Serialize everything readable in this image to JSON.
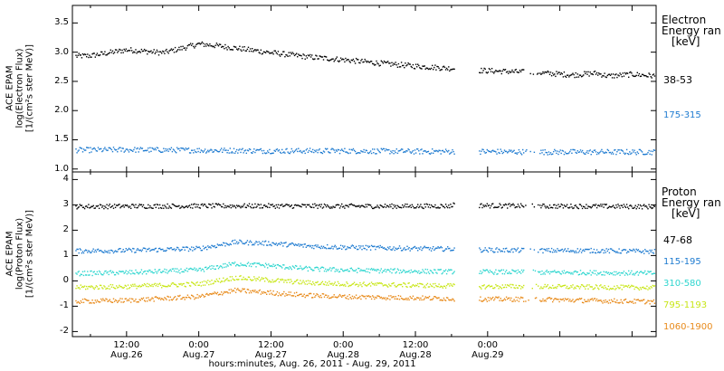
{
  "chart_data": [
    {
      "type": "scatter",
      "panel": "electron",
      "ylabel_lines": [
        "ACE EPAM",
        "log(Electron Flux)",
        "[1/(cm²s ster MeV)]"
      ],
      "ylim": [
        0.95,
        3.8
      ],
      "yticks": [
        "1.0",
        "1.5",
        "2.0",
        "2.5",
        "3.0",
        "3.5"
      ],
      "ytick_values": [
        1.0,
        1.5,
        2.0,
        2.5,
        3.0,
        3.5
      ],
      "legend_title_lines": [
        "Electron",
        "Energy ran",
        "[keV]"
      ],
      "series": [
        {
          "name": "38-53",
          "color": "#000000",
          "x": [
            0,
            6,
            12,
            18,
            24,
            27,
            30,
            36,
            42,
            48,
            54,
            60,
            66,
            70,
            80,
            86,
            90,
            92,
            96,
            100
          ],
          "y": [
            2.93,
            2.95,
            3.05,
            3.0,
            3.15,
            3.12,
            3.08,
            3.0,
            2.93,
            2.88,
            2.82,
            2.77,
            2.73,
            2.7,
            2.66,
            2.62,
            2.65,
            2.6,
            2.63,
            2.6
          ]
        },
        {
          "name": "175-315",
          "color": "#1e7bd0",
          "x": [
            0,
            12,
            24,
            36,
            48,
            60,
            70,
            80,
            88,
            100
          ],
          "y": [
            1.33,
            1.34,
            1.33,
            1.32,
            1.32,
            1.31,
            1.31,
            1.3,
            1.3,
            1.3
          ]
        }
      ]
    },
    {
      "type": "scatter",
      "panel": "proton",
      "ylabel_lines": [
        "ACE EPAM",
        "log(Proton Flux)",
        "[1/(cm²s ster MeV)]"
      ],
      "ylim": [
        -2.2,
        4.3
      ],
      "yticks": [
        "-2",
        "-1",
        "0",
        "1",
        "2",
        "3",
        "4"
      ],
      "ytick_values": [
        -2,
        -1,
        0,
        1,
        2,
        3,
        4
      ],
      "legend_title_lines": [
        "Proton",
        "Energy ran",
        "[keV]"
      ],
      "series": [
        {
          "name": "47-68",
          "color": "#000000",
          "x": [
            0,
            12,
            24,
            36,
            48,
            60,
            66,
            68,
            70,
            80,
            88,
            100
          ],
          "y": [
            2.95,
            2.97,
            2.98,
            2.98,
            2.97,
            2.97,
            2.98,
            3.6,
            3.0,
            2.97,
            2.97,
            2.95
          ]
        },
        {
          "name": "115-195",
          "color": "#1e7bd0",
          "x": [
            0,
            12,
            24,
            30,
            36,
            42,
            48,
            60,
            66,
            70,
            80,
            88,
            100
          ],
          "y": [
            1.2,
            1.22,
            1.3,
            1.55,
            1.5,
            1.4,
            1.35,
            1.3,
            1.28,
            1.25,
            1.22,
            1.22,
            1.18
          ]
        },
        {
          "name": "310-580",
          "color": "#2fd6cf",
          "x": [
            0,
            12,
            24,
            30,
            36,
            42,
            48,
            60,
            70,
            80,
            88,
            100
          ],
          "y": [
            0.3,
            0.35,
            0.45,
            0.7,
            0.62,
            0.5,
            0.45,
            0.4,
            0.38,
            0.36,
            0.35,
            0.32
          ]
        },
        {
          "name": "795-1193",
          "color": "#c8e617",
          "x": [
            0,
            12,
            24,
            30,
            36,
            42,
            48,
            60,
            70,
            80,
            88,
            100
          ],
          "y": [
            -0.25,
            -0.2,
            -0.1,
            0.15,
            0.05,
            -0.05,
            -0.1,
            -0.15,
            -0.2,
            -0.2,
            -0.22,
            -0.25
          ]
        },
        {
          "name": "1060-1900",
          "color": "#e88a1a",
          "x": [
            0,
            12,
            24,
            30,
            36,
            42,
            48,
            60,
            70,
            80,
            88,
            100
          ],
          "y": [
            -0.8,
            -0.75,
            -0.6,
            -0.35,
            -0.45,
            -0.55,
            -0.6,
            -0.65,
            -0.7,
            -0.7,
            -0.75,
            -0.8
          ]
        }
      ]
    }
  ],
  "x_axis": {
    "unit": "hours since 2011-08-26 00:00 UT",
    "xlim": [
      3,
      100
    ],
    "ticks": [
      {
        "x": 12,
        "time": "12:00",
        "date": "Aug.26"
      },
      {
        "x": 24,
        "time": "0:00",
        "date": "Aug.27"
      },
      {
        "x": 36,
        "time": "12:00",
        "date": "Aug.27"
      },
      {
        "x": 48,
        "time": "0:00",
        "date": "Aug.28"
      },
      {
        "x": 60,
        "time": "12:00",
        "date": "Aug.28"
      },
      {
        "x": 72,
        "time": "0:00",
        "date": "Aug.29"
      }
    ],
    "label": "hours:minutes, Aug. 26, 2011 - Aug. 29, 2011",
    "data_gaps": [
      [
        66.5,
        70.5
      ]
    ]
  }
}
